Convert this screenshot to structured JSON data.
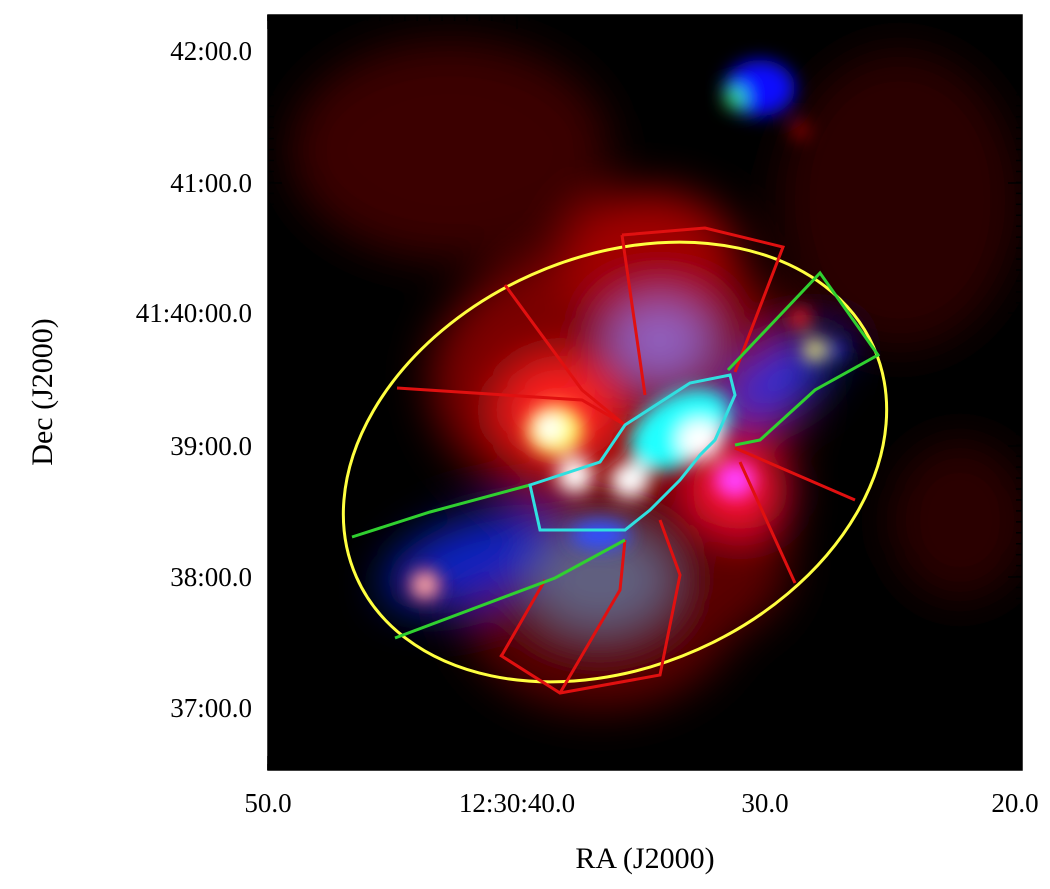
{
  "y_axis": {
    "label": "Dec (J2000)",
    "ticks": [
      "42:00.0",
      "41:00.0",
      "41:40:00.0",
      "39:00.0",
      "38:00.0",
      "37:00.0"
    ]
  },
  "x_axis": {
    "label": "RA (J2000)",
    "ticks": [
      "50.0",
      "12:30:40.0",
      "30.0",
      "20.0"
    ]
  }
}
